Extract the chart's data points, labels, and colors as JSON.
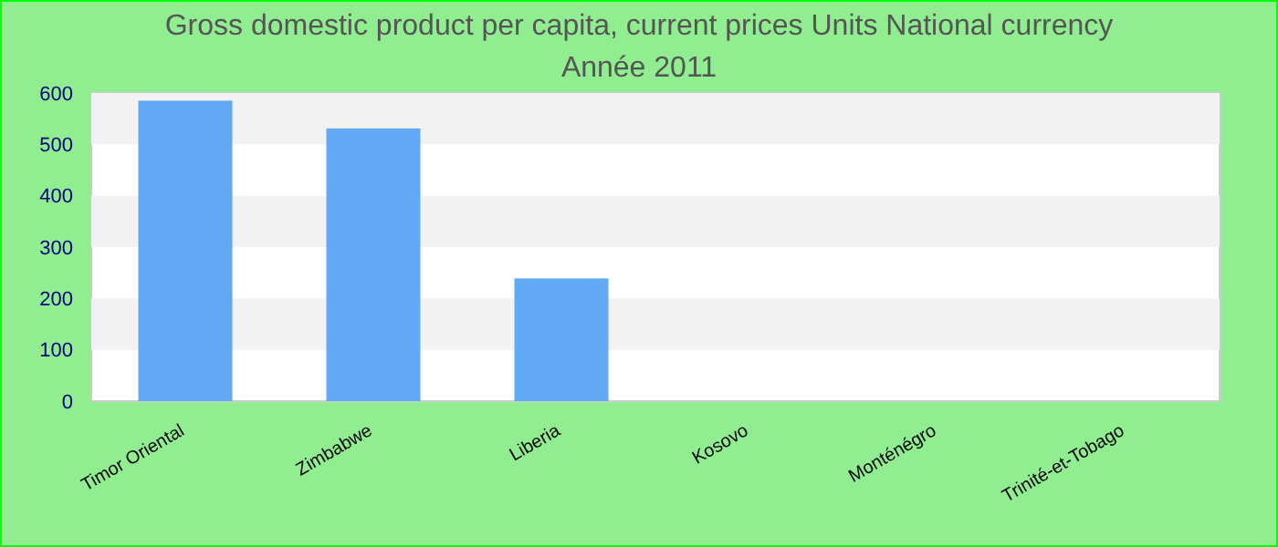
{
  "chart_data": {
    "type": "bar",
    "title": "Gross domestic product per capita, current prices Units National currency",
    "subtitle": "Année 2011",
    "categories": [
      "Timor Oriental",
      "Zimbabwe",
      "Liberia",
      "Kosovo",
      "Monténégro",
      "Trinité-et-Tobago"
    ],
    "values": [
      585,
      531,
      239,
      null,
      null,
      null
    ],
    "color": "#61a9f5",
    "ylim": [
      0,
      600
    ],
    "yticks": [
      0,
      100,
      200,
      300,
      400,
      500,
      600
    ]
  }
}
